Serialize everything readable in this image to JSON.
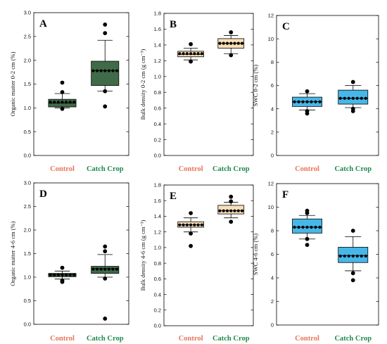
{
  "colors": {
    "control_label": "#e8735a",
    "catch_crop_label": "#1f8a4c",
    "om_box": "#3f6b48",
    "bd_box": "#f7dfb8",
    "swc_box": "#47b7e8"
  },
  "chart_data": [
    {
      "id": "A",
      "letter": "A",
      "type": "box",
      "ylabel": "Organic matter 0-2 cm (%)",
      "ylim": [
        0,
        3.0
      ],
      "yticks": [
        "0.0",
        "0.5",
        "1.0",
        "1.5",
        "2.0",
        "2.5",
        "3.0"
      ],
      "ystep": 0.5,
      "box_color": "#3f6b48",
      "categories": [
        "Control",
        "Catch Crop"
      ],
      "boxes": [
        {
          "category": "Control",
          "q1": 1.02,
          "median": 1.1,
          "q3": 1.18,
          "whisker_low": 1.0,
          "whisker_high": 1.3,
          "points": [
            1.12,
            1.12,
            1.12,
            1.12,
            1.12,
            1.12,
            1.12
          ],
          "outliers": [
            1.53,
            1.33,
            0.98
          ]
        },
        {
          "category": "Catch Crop",
          "q1": 1.47,
          "median": 1.78,
          "q3": 1.98,
          "whisker_low": 1.35,
          "whisker_high": 2.42,
          "points": [
            1.78,
            1.78,
            1.78,
            1.78,
            1.78,
            1.78,
            1.78
          ],
          "outliers": [
            2.75,
            2.57,
            1.35,
            1.03
          ]
        }
      ]
    },
    {
      "id": "B",
      "letter": "B",
      "type": "box",
      "ylabel": "Bulk density 0-2 cm (g cm⁻³)",
      "ylim": [
        0,
        1.8
      ],
      "yticks": [
        "0.0",
        "0.2",
        "0.4",
        "0.6",
        "0.8",
        "1.0",
        "1.2",
        "1.4",
        "1.6",
        "1.8"
      ],
      "ystep": 0.2,
      "box_color": "#f7dfb8",
      "categories": [
        "Control",
        "Catch Crop"
      ],
      "boxes": [
        {
          "category": "Control",
          "q1": 1.25,
          "median": 1.28,
          "q3": 1.32,
          "whisker_low": 1.21,
          "whisker_high": 1.36,
          "points": [
            1.29,
            1.29,
            1.29,
            1.29,
            1.29,
            1.29,
            1.29
          ],
          "outliers": [
            1.41,
            1.19
          ]
        },
        {
          "category": "Catch Crop",
          "q1": 1.36,
          "median": 1.42,
          "q3": 1.48,
          "whisker_low": 1.29,
          "whisker_high": 1.52,
          "points": [
            1.42,
            1.42,
            1.42,
            1.42,
            1.42,
            1.42,
            1.42
          ],
          "outliers": [
            1.56,
            1.27
          ]
        }
      ]
    },
    {
      "id": "C",
      "letter": "C",
      "type": "box",
      "ylabel": "SWC 0-2 cm (%)",
      "ylim": [
        0,
        12
      ],
      "yticks": [
        "0",
        "2",
        "4",
        "6",
        "8",
        "10",
        "12"
      ],
      "ystep": 2,
      "box_color": "#47b7e8",
      "categories": [
        "Control",
        "Catch Crop"
      ],
      "boxes": [
        {
          "category": "Control",
          "q1": 4.2,
          "median": 4.6,
          "q3": 5.0,
          "whisker_low": 3.9,
          "whisker_high": 5.3,
          "points": [
            4.6,
            4.6,
            4.6,
            4.6,
            4.6,
            4.6,
            4.6
          ],
          "outliers": [
            5.5,
            3.8,
            3.6
          ]
        },
        {
          "category": "Catch Crop",
          "q1": 4.4,
          "median": 4.9,
          "q3": 5.6,
          "whisker_low": 4.1,
          "whisker_high": 6.0,
          "points": [
            4.9,
            4.9,
            4.9,
            4.9,
            4.9,
            4.9,
            4.9
          ],
          "outliers": [
            6.3,
            4.0,
            3.8
          ]
        }
      ]
    },
    {
      "id": "D",
      "letter": "D",
      "type": "box",
      "ylabel": "Organic matter 4-6 cm (%)",
      "ylim": [
        0,
        3.0
      ],
      "yticks": [
        "0.0",
        "0.5",
        "1.0",
        "1.5",
        "2.0",
        "2.5",
        "3.0"
      ],
      "ystep": 0.5,
      "box_color": "#3f6b48",
      "categories": [
        "Control",
        "Catch Crop"
      ],
      "boxes": [
        {
          "category": "Control",
          "q1": 1.01,
          "median": 1.05,
          "q3": 1.08,
          "whisker_low": 0.96,
          "whisker_high": 1.13,
          "points": [
            1.05,
            1.05,
            1.05,
            1.05,
            1.05,
            1.05,
            1.05
          ],
          "outliers": [
            1.2,
            0.93,
            0.9
          ]
        },
        {
          "category": "Catch Crop",
          "q1": 1.08,
          "median": 1.18,
          "q3": 1.23,
          "whisker_low": 1.0,
          "whisker_high": 1.48,
          "points": [
            1.17,
            1.17,
            1.17,
            1.17,
            1.17,
            1.17,
            1.17
          ],
          "outliers": [
            1.65,
            1.55,
            0.97,
            0.12
          ]
        }
      ]
    },
    {
      "id": "E",
      "letter": "E",
      "type": "box",
      "ylabel": "Bulk density 4-6 cm (g cm⁻³)",
      "ylim": [
        0,
        1.8
      ],
      "yticks": [
        "0.0",
        "0.2",
        "0.4",
        "0.6",
        "0.8",
        "1.0",
        "1.2",
        "1.4",
        "1.6",
        "1.8"
      ],
      "ystep": 0.2,
      "box_color": "#f7dfb8",
      "categories": [
        "Control",
        "Catch Crop"
      ],
      "boxes": [
        {
          "category": "Control",
          "q1": 1.26,
          "median": 1.29,
          "q3": 1.33,
          "whisker_low": 1.2,
          "whisker_high": 1.38,
          "points": [
            1.29,
            1.29,
            1.29,
            1.29,
            1.29,
            1.29,
            1.29
          ],
          "outliers": [
            1.44,
            1.18,
            1.02
          ]
        },
        {
          "category": "Catch Crop",
          "q1": 1.43,
          "median": 1.47,
          "q3": 1.54,
          "whisker_low": 1.38,
          "whisker_high": 1.58,
          "points": [
            1.47,
            1.47,
            1.47,
            1.47,
            1.47,
            1.47,
            1.47
          ],
          "outliers": [
            1.65,
            1.59,
            1.33
          ]
        }
      ]
    },
    {
      "id": "F",
      "letter": "F",
      "type": "box",
      "ylabel": "SWC 4-6 cm (%)",
      "ylim": [
        0,
        12
      ],
      "yticks": [
        "0",
        "2",
        "4",
        "6",
        "8",
        "10",
        "12"
      ],
      "ystep": 2,
      "box_color": "#47b7e8",
      "categories": [
        "Control",
        "Catch Crop"
      ],
      "boxes": [
        {
          "category": "Control",
          "q1": 7.8,
          "median": 8.3,
          "q3": 9.0,
          "whisker_low": 7.3,
          "whisker_high": 9.3,
          "points": [
            8.3,
            8.3,
            8.3,
            8.3,
            8.3,
            8.3,
            8.3
          ],
          "outliers": [
            9.7,
            9.5,
            7.3,
            6.8
          ]
        },
        {
          "category": "Catch Crop",
          "q1": 5.3,
          "median": 5.9,
          "q3": 6.6,
          "whisker_low": 4.6,
          "whisker_high": 7.5,
          "points": [
            5.85,
            5.85,
            5.85,
            5.85,
            5.85,
            5.85,
            5.85
          ],
          "outliers": [
            8.0,
            4.4,
            3.8
          ]
        }
      ]
    }
  ]
}
